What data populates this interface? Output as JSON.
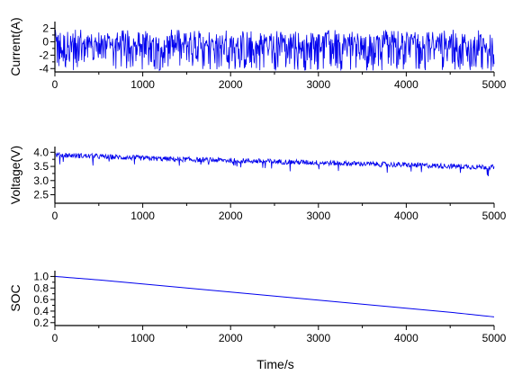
{
  "chart_data": [
    {
      "type": "line",
      "ylabel": "Current(A)",
      "xlabel": "",
      "xlim": [
        0,
        5000
      ],
      "ylim": [
        -4.5,
        3
      ],
      "x_ticks": [
        "0",
        "1000",
        "2000",
        "3000",
        "4000",
        "5000"
      ],
      "y_ticks": [
        "2",
        "0",
        "-2",
        "-4"
      ],
      "y_tick_values": [
        2,
        0,
        -2,
        -4
      ],
      "grid": false,
      "color": "#0000ee",
      "series": [
        {
          "pattern": "rapidly fluctuating current, mostly between -4.3 and 1.8 A",
          "x": [
            0,
            250,
            500,
            750,
            1000,
            1250,
            1500,
            1750,
            2000,
            2250,
            2500,
            2750,
            3000,
            3250,
            3500,
            3750,
            4000,
            4250,
            4500,
            4750,
            5000
          ],
          "values": [
            0.5,
            -1.0,
            0.8,
            -3.2,
            1.5,
            -0.6,
            -4.1,
            1.2,
            -2.0,
            0.9,
            -3.5,
            1.6,
            -1.2,
            -4.0,
            0.7,
            -2.6,
            1.4,
            -0.8,
            -3.9,
            1.1,
            -1.5
          ]
        }
      ]
    },
    {
      "type": "line",
      "ylabel": "Voltage(V)",
      "xlabel": "",
      "xlim": [
        0,
        5000
      ],
      "ylim": [
        2.2,
        4.2
      ],
      "x_ticks": [
        "0",
        "1000",
        "2000",
        "3000",
        "4000",
        "5000"
      ],
      "y_ticks": [
        "4.0",
        "3.5",
        "3.0",
        "2.5"
      ],
      "y_tick_values": [
        4.0,
        3.5,
        3.0,
        2.5
      ],
      "grid": false,
      "color": "#0000ee",
      "series": [
        {
          "pattern": "noisy voltage slowly declining",
          "x": [
            0,
            500,
            1000,
            1500,
            2000,
            2500,
            3000,
            3500,
            4000,
            4500,
            5000
          ],
          "values": [
            3.92,
            3.86,
            3.8,
            3.75,
            3.72,
            3.68,
            3.64,
            3.6,
            3.56,
            3.52,
            3.48
          ]
        }
      ]
    },
    {
      "type": "line",
      "ylabel": "SOC",
      "xlabel": "Time/s",
      "xlim": [
        0,
        5000
      ],
      "ylim": [
        0.15,
        1.1
      ],
      "x_ticks": [
        "0",
        "1000",
        "2000",
        "3000",
        "4000",
        "5000"
      ],
      "y_ticks": [
        "1.0",
        "0.8",
        "0.6",
        "0.4",
        "0.2"
      ],
      "y_tick_values": [
        1.0,
        0.8,
        0.6,
        0.4,
        0.2
      ],
      "grid": false,
      "color": "#0000ee",
      "series": [
        {
          "x": [
            0,
            500,
            1000,
            1500,
            2000,
            2500,
            3000,
            3500,
            4000,
            4500,
            5000
          ],
          "values": [
            1.0,
            0.94,
            0.87,
            0.8,
            0.73,
            0.66,
            0.59,
            0.52,
            0.45,
            0.38,
            0.3
          ]
        }
      ]
    }
  ]
}
